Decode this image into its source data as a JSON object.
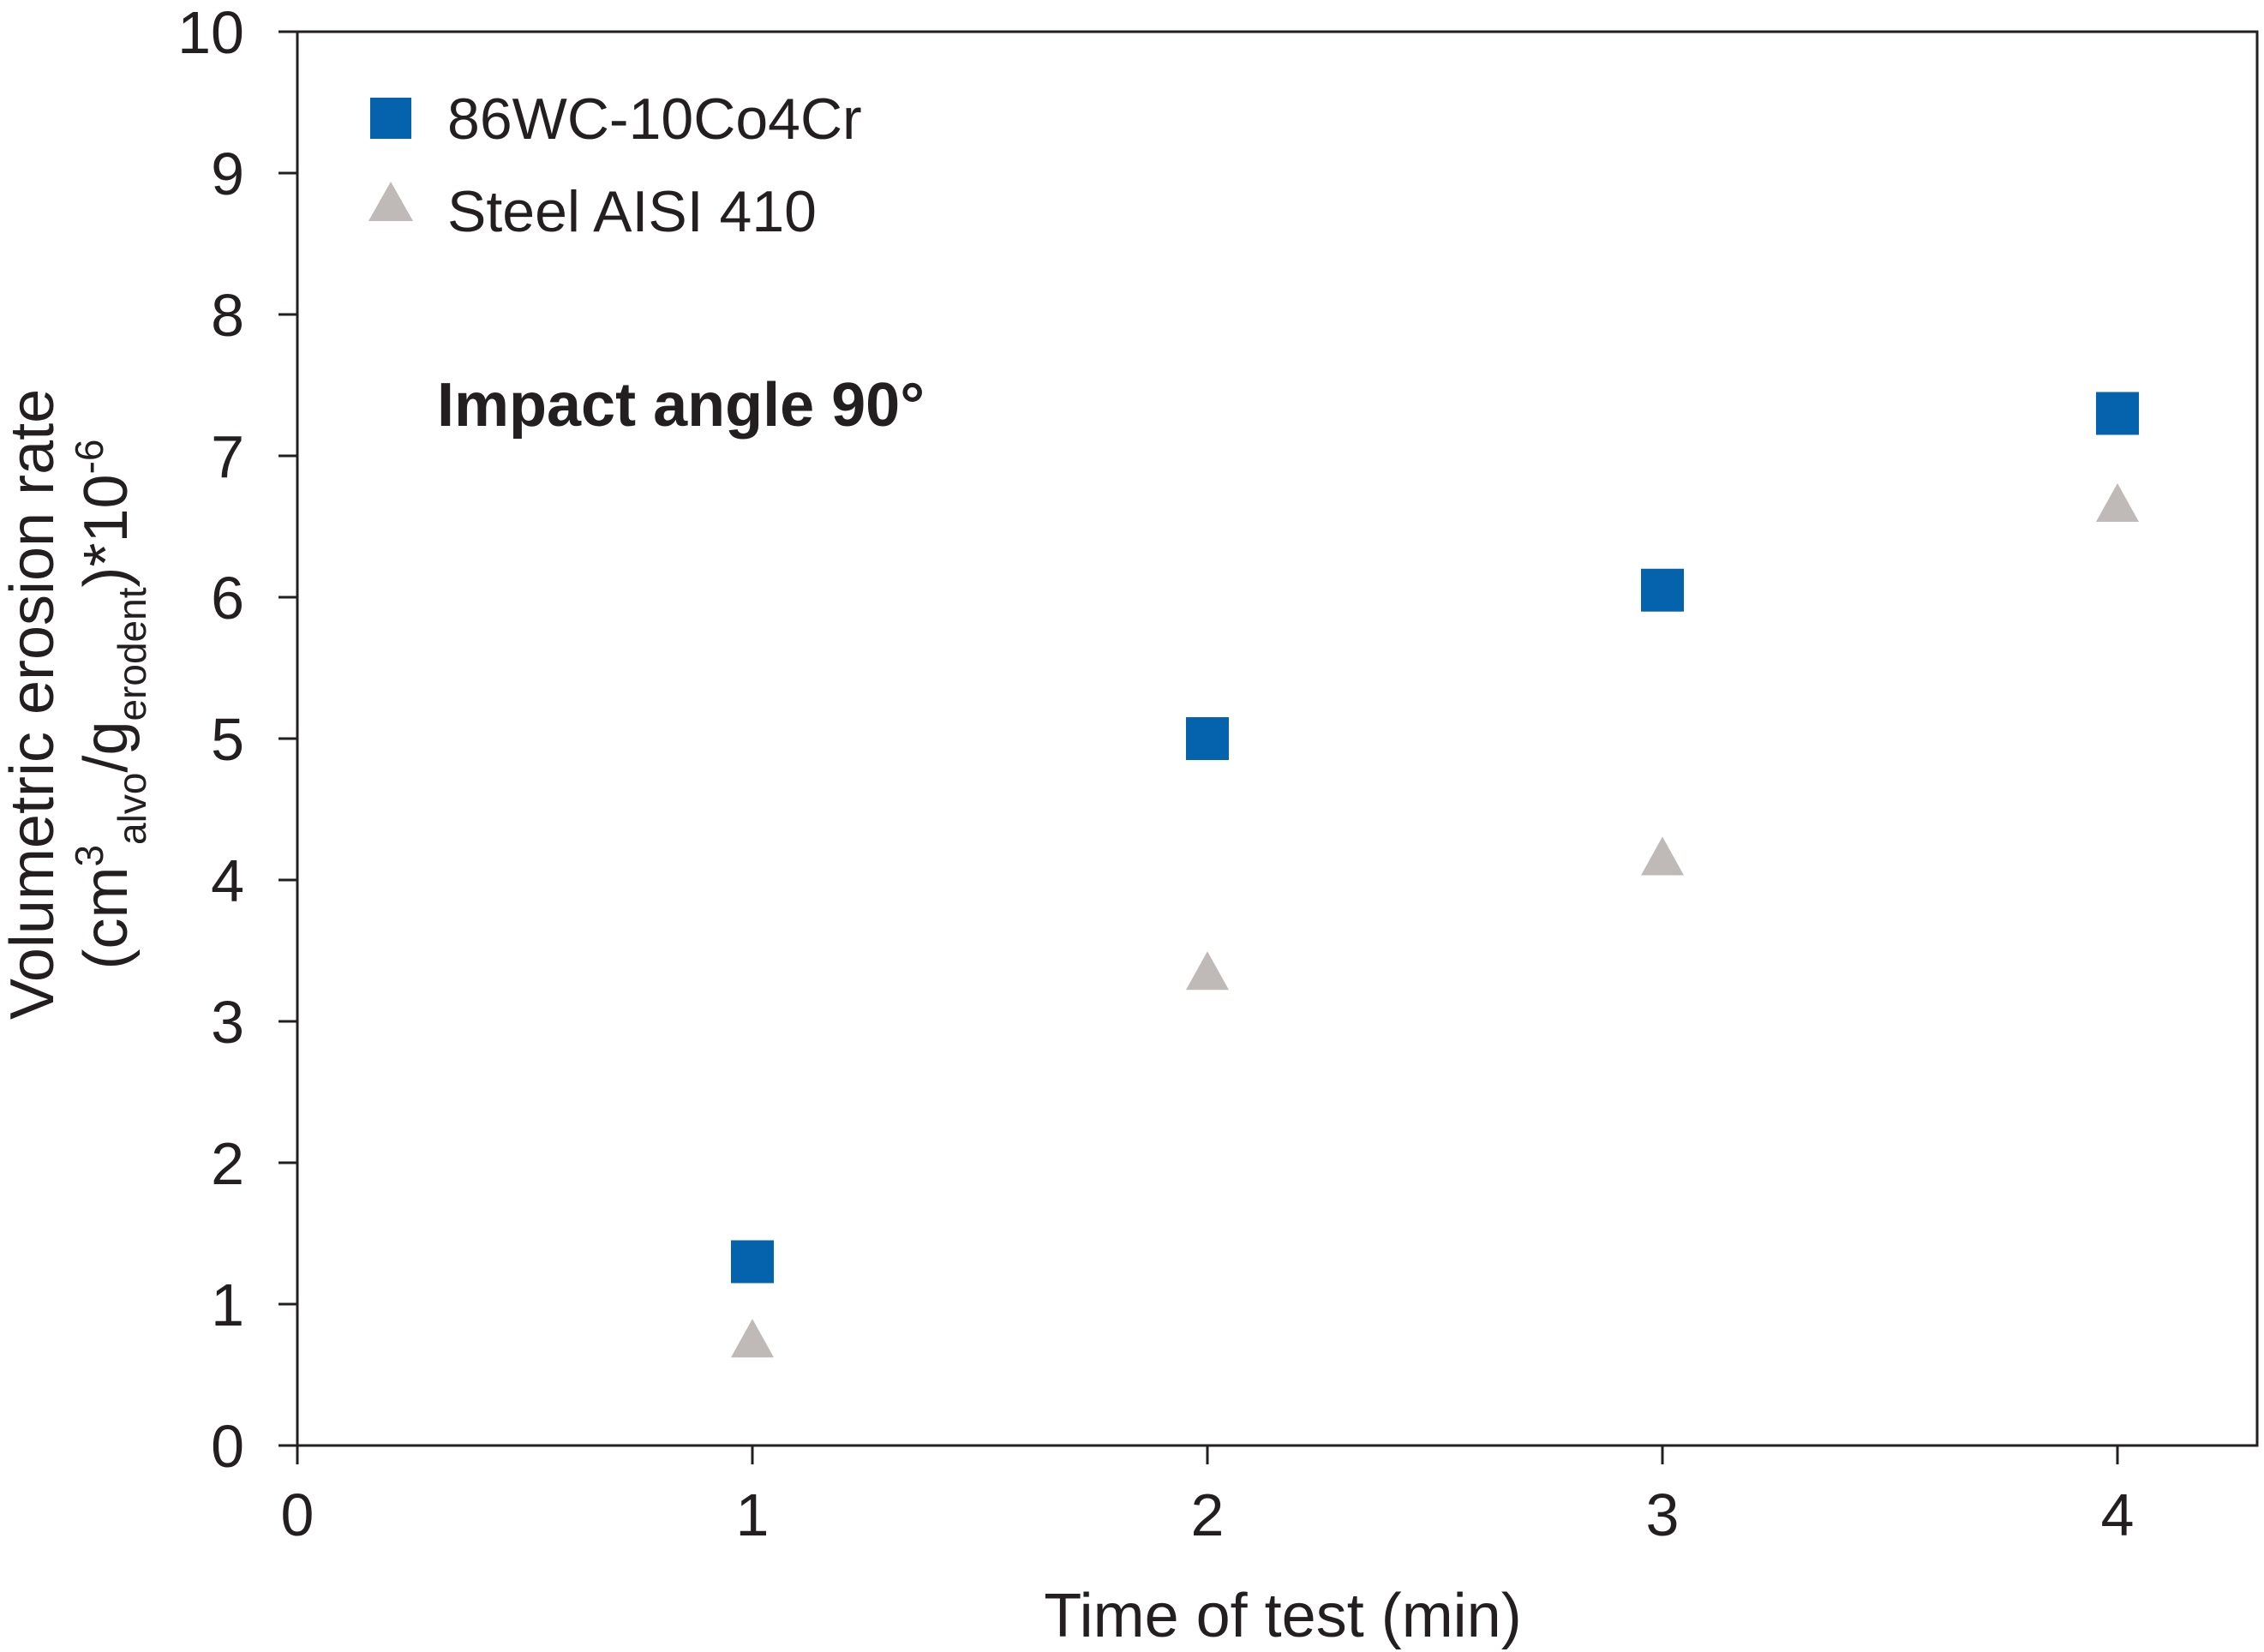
{
  "chart_data": {
    "type": "scatter",
    "xlabel": "Time of test (min)",
    "ylabel": {
      "line1": "Volumetric erosion rate",
      "open": "(cm",
      "sup3": "3",
      "sub_alvo": "alvo",
      "slash": "/g",
      "sub_erodent": "erodent",
      "close": ")*10",
      "sup_exp": "-6"
    },
    "annotation": "Impact angle 90°",
    "xlim": [
      0,
      4.3
    ],
    "ylim": [
      0,
      10
    ],
    "xticks": [
      0,
      1,
      2,
      3,
      4
    ],
    "yticks": [
      0,
      1,
      2,
      3,
      4,
      5,
      6,
      7,
      8,
      9,
      10
    ],
    "grid": false,
    "legend_position": "top-left",
    "series": [
      {
        "name": "86WC-10Co4Cr",
        "marker": "square",
        "color": "#0563ad",
        "x": [
          1,
          2,
          3,
          4
        ],
        "y": [
          1.3,
          5.0,
          6.05,
          7.3
        ]
      },
      {
        "name": "Steel AISI 410",
        "marker": "triangle",
        "color": "#bfb9b7",
        "x": [
          1,
          2,
          3,
          4
        ],
        "y": [
          0.72,
          3.32,
          4.13,
          6.63
        ]
      }
    ]
  }
}
